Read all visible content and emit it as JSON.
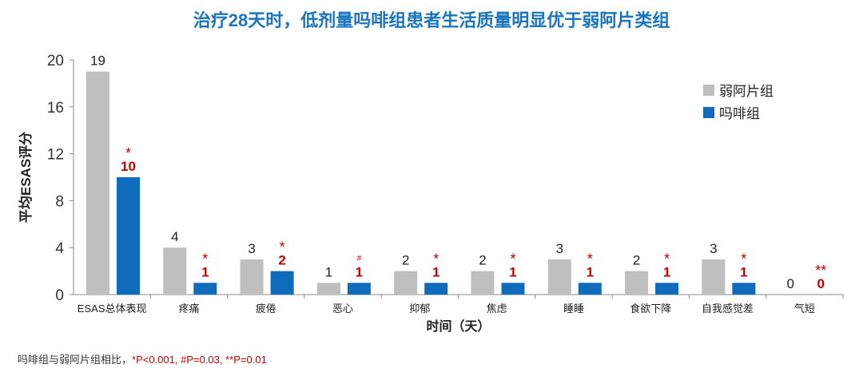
{
  "chart_data": {
    "type": "bar",
    "title": "治疗28天时，低剂量吗啡组患者生活质量明显优于弱阿片类组",
    "xlabel": "时间（天）",
    "ylabel": "平均ESAS评分",
    "ylim": [
      0,
      20
    ],
    "yticks": [
      0,
      4,
      8,
      12,
      16,
      20
    ],
    "categories": [
      "ESAS总体表现",
      "疼痛",
      "疲倦",
      "恶心",
      "抑郁",
      "焦虑",
      "睡睡",
      "食欲下降",
      "自我感觉差",
      "气短"
    ],
    "series": [
      {
        "name": "弱阿片组",
        "color": "#bfbfbf",
        "values": [
          19,
          4,
          3,
          1,
          2,
          2,
          3,
          2,
          3,
          0
        ]
      },
      {
        "name": "吗啡组",
        "color": "#0f6cbd",
        "values": [
          10,
          1,
          2,
          1,
          1,
          1,
          1,
          1,
          1,
          0
        ],
        "significance": [
          "*",
          "*",
          "*",
          "#",
          "*",
          "*",
          "*",
          "*",
          "*",
          "**"
        ]
      }
    ],
    "legend": "top-right",
    "footnote": {
      "text": "吗啡组与弱阿片组相比，",
      "pvalues": "*P<0.001, #P=0.03, **P=0.01"
    }
  }
}
